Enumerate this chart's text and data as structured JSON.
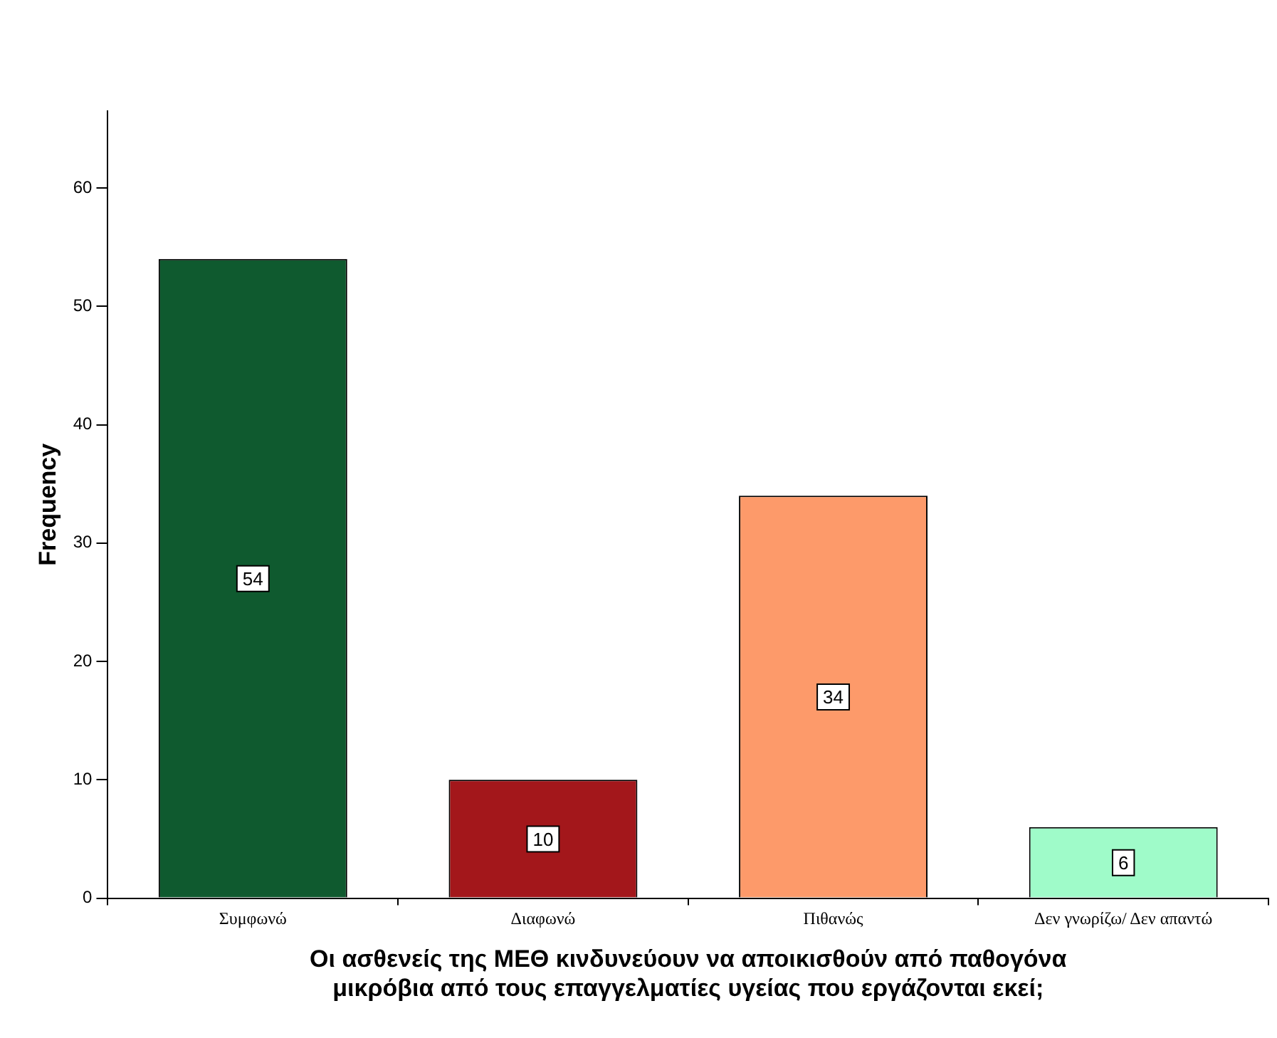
{
  "chart_data": {
    "type": "bar",
    "xlabel": "Οι ασθενείς της ΜΕΘ κινδυνεύουν να αποικισθούν από παθογόνα\nμικρόβια από τους επαγγελματίες υγείας που εργάζονται εκεί;",
    "ylabel": "Frequency",
    "categories": [
      "Συμφωνώ",
      "Διαφωνώ",
      "Πιθανώς",
      "Δεν γνωρίζω/ Δεν απαντώ"
    ],
    "values": [
      54,
      10,
      34,
      6
    ],
    "colors": [
      "#0f5a2f",
      "#a3171b",
      "#fd9a6a",
      "#9ffbc9"
    ],
    "ylim": [
      0,
      66.5
    ],
    "yticks": [
      0,
      10,
      20,
      30,
      40,
      50,
      60
    ],
    "grid": false,
    "legend": false,
    "data_labels": true
  }
}
